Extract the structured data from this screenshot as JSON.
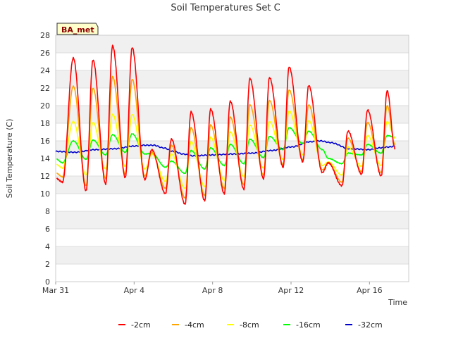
{
  "chart_data": {
    "type": "line",
    "title": "Soil Temperatures Set C",
    "xlabel": "Time",
    "ylabel": "Soil Temperature (C)",
    "site_label": "BA_met",
    "ylim": [
      0,
      28
    ],
    "yticks": [
      0,
      2,
      4,
      6,
      8,
      10,
      12,
      14,
      16,
      18,
      20,
      22,
      24,
      26,
      28
    ],
    "xlim_days": [
      0,
      18
    ],
    "xticks": [
      {
        "day": 0,
        "label": "Mar 31"
      },
      {
        "day": 4,
        "label": "Apr 4"
      },
      {
        "day": 8,
        "label": "Apr 8"
      },
      {
        "day": 12,
        "label": "Apr 12"
      },
      {
        "day": 16,
        "label": "Apr 16"
      }
    ],
    "grid": true,
    "legend_position": "bottom",
    "daily_peaks": {
      "days": [
        0.9,
        1.9,
        2.9,
        3.9,
        4.9,
        5.9,
        6.9,
        7.9,
        8.9,
        9.9,
        10.9,
        11.9,
        12.9,
        13.9,
        14.9,
        15.9,
        16.9
      ],
      "minus2cm": [
        25.4,
        25.2,
        26.8,
        26.6,
        15.0,
        16.2,
        19.3,
        19.6,
        20.5,
        23.1,
        23.2,
        24.4,
        22.3,
        13.5,
        17.1,
        19.5,
        21.7
      ],
      "minus4cm": [
        22.2,
        22.0,
        23.3,
        23.0,
        14.7,
        15.5,
        17.5,
        17.8,
        18.7,
        20.1,
        20.6,
        21.8,
        20.1,
        13.5,
        16.3,
        18.1,
        20.0
      ],
      "minus8cm": [
        18.2,
        18.1,
        19.0,
        19.0,
        14.5,
        14.5,
        15.9,
        16.4,
        17.0,
        17.8,
        18.2,
        19.4,
        18.3,
        13.6,
        15.3,
        16.6,
        18.2
      ],
      "minus16cm": [
        16.0,
        16.1,
        16.7,
        16.8,
        14.6,
        13.7,
        14.9,
        15.2,
        15.6,
        16.2,
        16.5,
        17.5,
        17.1,
        14.0,
        14.6,
        15.6,
        16.6
      ]
    },
    "daily_mins": {
      "days": [
        0.35,
        1.55,
        2.55,
        3.55,
        4.55,
        5.6,
        6.6,
        7.6,
        8.6,
        9.6,
        10.6,
        11.6,
        12.6,
        13.6,
        14.6,
        15.6,
        16.6
      ],
      "minus2cm": [
        11.3,
        10.3,
        11.1,
        11.8,
        11.6,
        10.0,
        8.8,
        9.2,
        10.0,
        10.5,
        11.7,
        13.0,
        13.6,
        12.4,
        10.9,
        12.2,
        12.0
      ],
      "minus4cm": [
        11.9,
        10.9,
        11.7,
        12.2,
        12.0,
        10.6,
        9.5,
        9.8,
        10.6,
        11.0,
        12.1,
        13.3,
        13.8,
        12.7,
        11.3,
        12.5,
        12.4
      ],
      "minus8cm": [
        12.9,
        12.1,
        12.8,
        13.1,
        12.8,
        11.4,
        10.6,
        10.8,
        11.5,
        11.9,
        12.9,
        13.9,
        14.4,
        13.2,
        12.1,
        13.1,
        13.2
      ],
      "minus16cm": [
        13.5,
        13.9,
        14.4,
        14.7,
        14.5,
        13.0,
        12.3,
        12.8,
        13.2,
        13.4,
        14.1,
        15.0,
        15.7,
        15.0,
        13.4,
        14.4,
        14.6
      ]
    },
    "series": [
      {
        "name": "-2cm",
        "color": "#ff0000",
        "end_value": 15.1
      },
      {
        "name": "-4cm",
        "color": "#ffa500",
        "end_value": 15.6
      },
      {
        "name": "-8cm",
        "color": "#ffff00",
        "end_value": 16.3
      },
      {
        "name": "-16cm",
        "color": "#00ff00",
        "end_value": 16.4
      },
      {
        "name": "-32cm",
        "color": "#0000cc",
        "x_days": [
          0,
          1,
          2,
          3,
          4,
          4.5,
          5,
          5.5,
          6,
          6.5,
          7,
          8,
          9,
          10,
          11,
          12,
          13,
          13.5,
          14,
          15,
          16,
          16.5,
          17,
          17.3
        ],
        "values": [
          14.8,
          14.7,
          15.0,
          15.1,
          15.4,
          15.5,
          15.5,
          15.2,
          14.8,
          14.5,
          14.3,
          14.4,
          14.5,
          14.6,
          14.9,
          15.3,
          15.9,
          16.0,
          15.8,
          15.1,
          15.0,
          15.2,
          15.3,
          15.4
        ]
      }
    ]
  }
}
